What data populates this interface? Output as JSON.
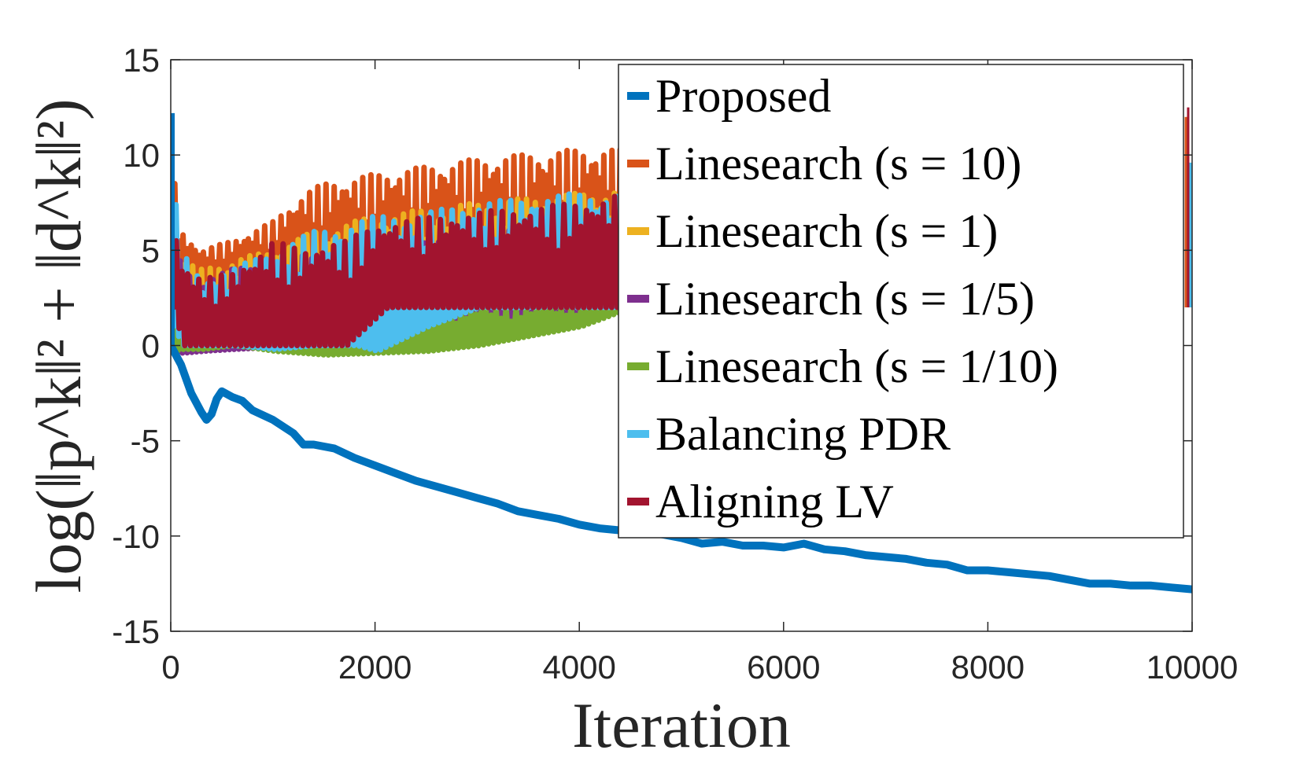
{
  "chart_data": {
    "type": "line",
    "xlabel": "Iteration",
    "ylabel": "log(‖p^k‖² + ‖d^k‖²)",
    "xlim": [
      0,
      10000
    ],
    "ylim": [
      -15,
      15
    ],
    "xticks": [
      0,
      2000,
      4000,
      6000,
      8000,
      10000
    ],
    "yticks": [
      15,
      10,
      5,
      0,
      -5,
      -10,
      -15
    ],
    "xtick_labels": [
      "0",
      "2000",
      "4000",
      "6000",
      "8000",
      "10000"
    ],
    "ytick_labels": [
      "15",
      "10",
      "5",
      "0",
      "-5",
      "-10",
      "-15"
    ],
    "grid": false,
    "legend_position": "top-right",
    "series": [
      {
        "name": "Proposed",
        "color": "#0072BD",
        "style": "smooth",
        "x": [
          0,
          100,
          200,
          300,
          350,
          400,
          450,
          500,
          600,
          700,
          800,
          1000,
          1200,
          1300,
          1400,
          1600,
          1800,
          2000,
          2200,
          2400,
          2600,
          2800,
          3000,
          3200,
          3400,
          3600,
          3800,
          4000,
          4200,
          4400,
          4600,
          4800,
          5000,
          5200,
          5400,
          5600,
          5800,
          6000,
          6200,
          6400,
          6600,
          6800,
          7000,
          7200,
          7400,
          7600,
          7800,
          8000,
          8200,
          8400,
          8600,
          8800,
          9000,
          9200,
          9400,
          9600,
          9800,
          10000
        ],
        "y": [
          0.0,
          -1.0,
          -2.5,
          -3.5,
          -3.9,
          -3.6,
          -2.8,
          -2.4,
          -2.7,
          -2.9,
          -3.4,
          -3.9,
          -4.6,
          -5.2,
          -5.2,
          -5.4,
          -5.9,
          -6.3,
          -6.7,
          -7.1,
          -7.4,
          -7.7,
          -8.0,
          -8.3,
          -8.7,
          -8.9,
          -9.1,
          -9.4,
          -9.6,
          -9.7,
          -9.8,
          -9.9,
          -10.1,
          -10.4,
          -10.3,
          -10.5,
          -10.5,
          -10.6,
          -10.4,
          -10.7,
          -10.8,
          -11.0,
          -11.1,
          -11.2,
          -11.4,
          -11.5,
          -11.8,
          -11.8,
          -11.9,
          -12.0,
          -12.1,
          -12.3,
          -12.5,
          -12.5,
          -12.6,
          -12.6,
          -12.7,
          -12.8
        ]
      },
      {
        "name": "Linesearch (s = 10)",
        "color": "#D95319",
        "style": "band",
        "x": [
          0,
          100,
          300,
          600,
          1000,
          1300,
          1500,
          2000,
          3000,
          4000,
          4400
        ],
        "upper": [
          10.2,
          6.0,
          5.0,
          5.5,
          6.5,
          8.0,
          8.5,
          9.0,
          9.8,
          10.3,
          10.3
        ],
        "lower": [
          2.0,
          3.0,
          3.0,
          3.0,
          3.0,
          3.0,
          3.0,
          3.0,
          3.0,
          3.0,
          3.0
        ]
      },
      {
        "name": "Linesearch (s = 1)",
        "color": "#EDB120",
        "style": "band",
        "x": [
          0,
          100,
          300,
          600,
          1000,
          1400,
          2000,
          3000,
          4000,
          4400
        ],
        "upper": [
          10.0,
          4.5,
          4.0,
          4.5,
          5.0,
          6.0,
          6.8,
          7.5,
          8.0,
          8.2
        ],
        "lower": [
          1.5,
          0.2,
          0.2,
          0.3,
          0.5,
          1.0,
          1.5,
          1.8,
          1.9,
          2.0
        ]
      },
      {
        "name": "Linesearch (s = 1/5)",
        "color": "#7E2F8E",
        "style": "band",
        "x": [
          0,
          100,
          300,
          600,
          1000,
          1400,
          2000,
          3000,
          4000,
          4400
        ],
        "upper": [
          9.8,
          4.0,
          3.5,
          4.0,
          4.5,
          5.0,
          5.5,
          6.0,
          6.3,
          6.5
        ],
        "lower": [
          -0.3,
          -0.4,
          -0.3,
          -0.2,
          -0.1,
          0.0,
          0.5,
          1.2,
          1.8,
          2.0
        ]
      },
      {
        "name": "Linesearch (s = 1/10)",
        "color": "#77AC30",
        "style": "band",
        "x": [
          0,
          100,
          300,
          600,
          1000,
          1500,
          2000,
          2500,
          3000,
          3500,
          4000,
          4400
        ],
        "upper": [
          2.0,
          2.0,
          2.0,
          2.0,
          2.0,
          2.0,
          2.0,
          2.0,
          2.0,
          2.0,
          2.0,
          2.0
        ],
        "lower": [
          -0.3,
          -0.2,
          -0.2,
          0.0,
          -0.3,
          -0.5,
          -0.4,
          -0.3,
          0.0,
          0.5,
          1.0,
          1.8
        ]
      },
      {
        "name": "Balancing PDR",
        "color": "#4DBEEE",
        "style": "band",
        "x": [
          0,
          100,
          300,
          600,
          1000,
          1400,
          1800,
          2000,
          2500,
          3000,
          4000,
          4400
        ],
        "upper": [
          10.0,
          5.0,
          3.5,
          4.0,
          5.0,
          6.0,
          6.5,
          6.8,
          7.0,
          7.5,
          8.0,
          8.0
        ],
        "lower": [
          1.0,
          0.0,
          0.0,
          0.0,
          -0.2,
          0.0,
          0.0,
          -0.3,
          1.0,
          2.0,
          2.0,
          2.0
        ]
      },
      {
        "name": "Aligning LV",
        "color": "#A2142F",
        "style": "band",
        "x": [
          0,
          100,
          300,
          600,
          1000,
          1300,
          1500,
          1700,
          2100,
          3000,
          4000,
          4400
        ],
        "upper": [
          9.0,
          4.5,
          3.5,
          3.8,
          5.5,
          5.0,
          5.5,
          5.5,
          6.5,
          7.0,
          7.5,
          8.0
        ],
        "lower": [
          2.0,
          0.0,
          0.0,
          0.0,
          0.0,
          0.0,
          0.0,
          0.0,
          2.0,
          2.0,
          2.0,
          2.0
        ]
      }
    ],
    "edge_marks": [
      {
        "series": "Balancing PDR",
        "x": 10000,
        "y_low": 2.0,
        "y_high": 9.6
      },
      {
        "series": "Aligning LV",
        "x": 10000,
        "y_low": 2.0,
        "y_high": 12.5
      },
      {
        "series": "Linesearch (s = 10)",
        "x": 10000,
        "y_low": 2.0,
        "y_high": 12.0
      }
    ]
  }
}
